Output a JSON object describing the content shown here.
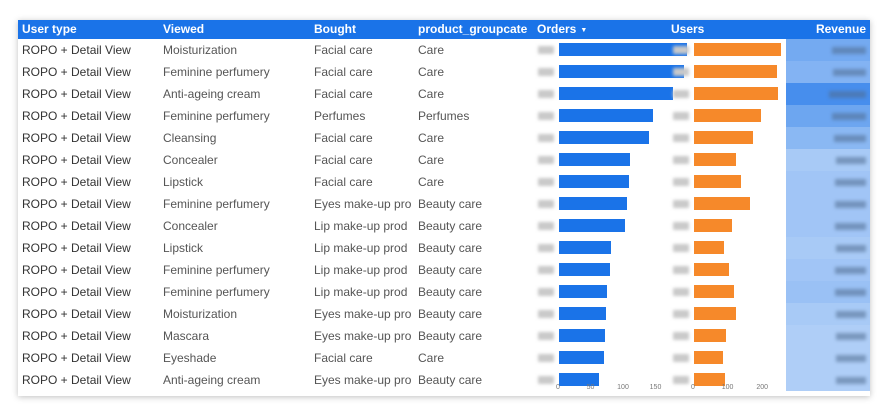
{
  "header": {
    "user_type": "User type",
    "viewed": "Viewed",
    "bought": "Bought",
    "product_group": "product_groupcate...",
    "orders": "Orders",
    "orders_sort": "▼",
    "users": "Users",
    "revenue": "Revenue"
  },
  "colors": {
    "header": "#1a73e8",
    "orders_bar": "#1a73e8",
    "users_bar": "#f6892a",
    "revenue_heat": "#1a73e8"
  },
  "rows": [
    {
      "user_type": "ROPO + Detail View",
      "viewed": "Moisturization",
      "bought": "Facial care",
      "group": "Care",
      "orders": 197,
      "users": 251,
      "revenue_level": 0.55
    },
    {
      "user_type": "ROPO + Detail View",
      "viewed": "Feminine perfumery",
      "bought": "Facial care",
      "group": "Care",
      "orders": 192,
      "users": 239,
      "revenue_level": 0.45
    },
    {
      "user_type": "ROPO + Detail View",
      "viewed": "Anti-ageing cream",
      "bought": "Facial care",
      "group": "Care",
      "orders": 176,
      "users": 244,
      "revenue_level": 0.85
    },
    {
      "user_type": "ROPO + Detail View",
      "viewed": "Feminine perfumery",
      "bought": "Perfumes",
      "group": "Perfumes",
      "orders": 144,
      "users": 193,
      "revenue_level": 0.6
    },
    {
      "user_type": "ROPO + Detail View",
      "viewed": "Cleansing",
      "bought": "Facial care",
      "group": "Care",
      "orders": 138,
      "users": 169,
      "revenue_level": 0.4
    },
    {
      "user_type": "ROPO + Detail View",
      "viewed": "Concealer",
      "bought": "Facial care",
      "group": "Care",
      "orders": 109,
      "users": 120,
      "revenue_level": 0.2
    },
    {
      "user_type": "ROPO + Detail View",
      "viewed": "Lipstick",
      "bought": "Facial care",
      "group": "Care",
      "orders": 107,
      "users": 136,
      "revenue_level": 0.25
    },
    {
      "user_type": "ROPO + Detail View",
      "viewed": "Feminine perfumery",
      "bought": "Eyes make-up pro",
      "group": "Beauty care",
      "orders": 105,
      "users": 161,
      "revenue_level": 0.25
    },
    {
      "user_type": "ROPO + Detail View",
      "viewed": "Concealer",
      "bought": "Lip make-up prod",
      "group": "Beauty care",
      "orders": 101,
      "users": 111,
      "revenue_level": 0.25
    },
    {
      "user_type": "ROPO + Detail View",
      "viewed": "Lipstick",
      "bought": "Lip make-up prod",
      "group": "Beauty care",
      "orders": 80,
      "users": 88,
      "revenue_level": 0.2
    },
    {
      "user_type": "ROPO + Detail View",
      "viewed": "Feminine perfumery",
      "bought": "Lip make-up prod",
      "group": "Beauty care",
      "orders": 78,
      "users": 102,
      "revenue_level": 0.25
    },
    {
      "user_type": "ROPO + Detail View",
      "viewed": "Feminine perfumery",
      "bought": "Lip make-up prod",
      "group": "Beauty care",
      "orders": 74,
      "users": 116,
      "revenue_level": 0.3
    },
    {
      "user_type": "ROPO + Detail View",
      "viewed": "Moisturization",
      "bought": "Eyes make-up pro",
      "group": "Beauty care",
      "orders": 73,
      "users": 120,
      "revenue_level": 0.2
    },
    {
      "user_type": "ROPO + Detail View",
      "viewed": "Mascara",
      "bought": "Eyes make-up pro",
      "group": "Beauty care",
      "orders": 71,
      "users": 92,
      "revenue_level": 0.15
    },
    {
      "user_type": "ROPO + Detail View",
      "viewed": "Eyeshade",
      "bought": "Facial care",
      "group": "Care",
      "orders": 69,
      "users": 84,
      "revenue_level": 0.15
    },
    {
      "user_type": "ROPO + Detail View",
      "viewed": "Anti-ageing cream",
      "bought": "Eyes make-up pro",
      "group": "Beauty care",
      "orders": 62,
      "users": 89,
      "revenue_level": 0.15
    }
  ],
  "orders_axis": {
    "ticks": [
      "0",
      "50",
      "100",
      "150"
    ],
    "max": 200
  },
  "users_axis": {
    "ticks": [
      "0",
      "100",
      "200"
    ],
    "max": 260
  }
}
